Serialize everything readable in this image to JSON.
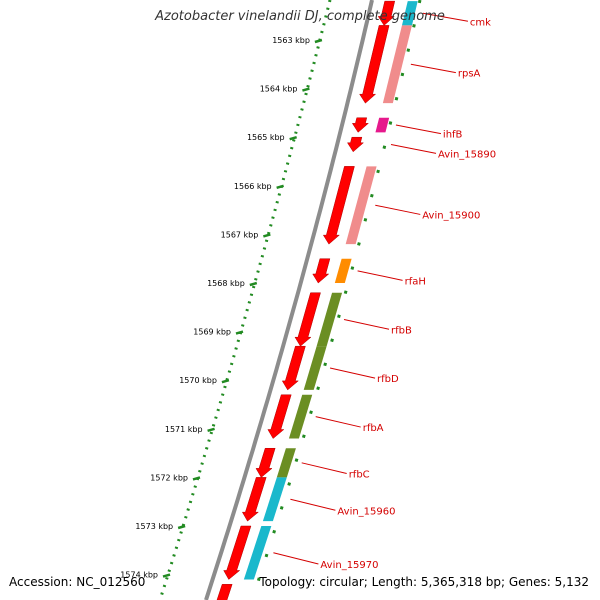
{
  "title": "Azotobacter vinelandii DJ, complete genome",
  "footer": {
    "accession": "Accession: NC_012560",
    "topology": "Topology: circular; Length: 5,365,318 bp; Genes: 5,132"
  },
  "colors": {
    "backbone": "#8c8c8c",
    "tick_ring": "#228b22",
    "gene_strand": "#ff0000",
    "label": "#d40000",
    "pink": "#f08c8c",
    "magenta": "#e6198c",
    "orange": "#ff8c00",
    "olive": "#6b8e23",
    "cyan": "#1ab8cc"
  },
  "ticks": [
    "1563 kbp",
    "1564 kbp",
    "1565 kbp",
    "1566 kbp",
    "1567 kbp",
    "1568 kbp",
    "1569 kbp",
    "1570 kbp",
    "1571 kbp",
    "1572 kbp",
    "1573 kbp",
    "1574 kbp"
  ],
  "genes": [
    {
      "label": "cmk",
      "kbp_start": 1562.2,
      "kbp_end": 1562.7,
      "cog_color": "cyan"
    },
    {
      "label": "rpsA",
      "kbp_start": 1562.7,
      "kbp_end": 1564.3,
      "cog_color": "pink"
    },
    {
      "label": "ihfB",
      "kbp_start": 1564.6,
      "kbp_end": 1564.9,
      "cog_color": "magenta"
    },
    {
      "label": "Avin_15890",
      "kbp_start": 1565.0,
      "kbp_end": 1565.3,
      "cog_color": null
    },
    {
      "label": "Avin_15900",
      "kbp_start": 1565.6,
      "kbp_end": 1567.2,
      "cog_color": "pink"
    },
    {
      "label": "rfaH",
      "kbp_start": 1567.5,
      "kbp_end": 1568.0,
      "cog_color": "orange"
    },
    {
      "label": "rfbB",
      "kbp_start": 1568.2,
      "kbp_end": 1569.3,
      "cog_color": "olive"
    },
    {
      "label": "rfbD",
      "kbp_start": 1569.3,
      "kbp_end": 1570.2,
      "cog_color": "olive"
    },
    {
      "label": "rfbA",
      "kbp_start": 1570.3,
      "kbp_end": 1571.2,
      "cog_color": "olive"
    },
    {
      "label": "rfbC",
      "kbp_start": 1571.4,
      "kbp_end": 1572.0,
      "cog_color": "olive"
    },
    {
      "label": "Avin_15960",
      "kbp_start": 1572.0,
      "kbp_end": 1572.9,
      "cog_color": "cyan"
    },
    {
      "label": "Avin_15970",
      "kbp_start": 1573.0,
      "kbp_end": 1574.1,
      "cog_color": "cyan"
    },
    {
      "label": null,
      "kbp_start": 1574.2,
      "kbp_end": 1575.0,
      "cog_color": null
    }
  ]
}
